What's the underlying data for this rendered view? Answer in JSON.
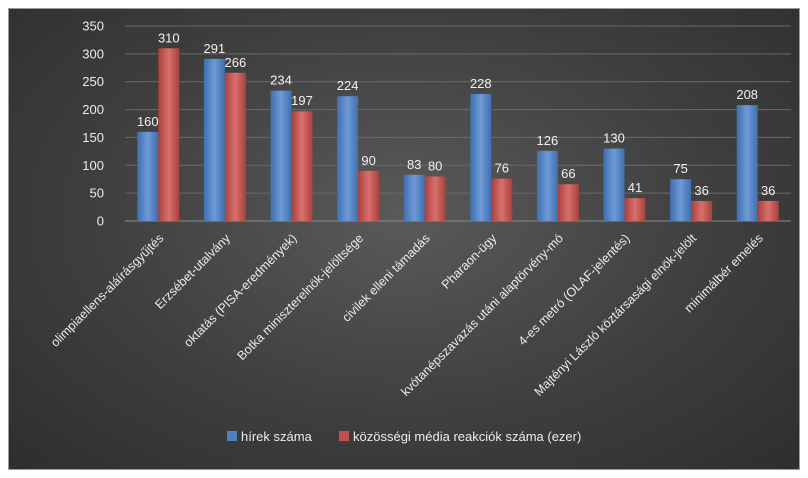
{
  "chart_data": {
    "type": "bar",
    "title": "",
    "xlabel": "",
    "ylabel": "",
    "ylim": [
      0,
      350
    ],
    "yticks": [
      0,
      50,
      100,
      150,
      200,
      250,
      300,
      350
    ],
    "grid": true,
    "legend_position": "bottom",
    "categories": [
      "olimpiaellens-aláírásgyűjtés",
      "Erzsébet-utalvány",
      "oktatás (PISA-eredmények)",
      "Botka miniszterelnök-jelöltsége",
      "civilek elleni támadás",
      "Pharaon-ügy",
      "kvótanépszavazás utáni alaptörvény-mó",
      "4-es metró (OLAF-jelentés)",
      "Majtényi László köztársasági elnök-jelölt",
      "minimálbér emelés"
    ],
    "series": [
      {
        "name": "hírek száma",
        "color": "#4f81bd",
        "values": [
          160,
          291,
          234,
          224,
          83,
          228,
          126,
          130,
          75,
          208
        ]
      },
      {
        "name": "közösségi média reakciók száma (ezer)",
        "color": "#c0504d",
        "values": [
          310,
          266,
          197,
          90,
          80,
          76,
          66,
          41,
          36,
          36
        ]
      }
    ]
  }
}
